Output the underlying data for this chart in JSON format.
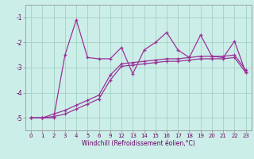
{
  "xlabel": "Windchill (Refroidissement éolien,°C)",
  "bg_color": "#cceee8",
  "line_color": "#993399",
  "grid_color": "#99ccbb",
  "ylim": [
    -5.5,
    -0.5
  ],
  "yticks": [
    -5,
    -4,
    -3,
    -2,
    -1
  ],
  "x_labels": [
    "0",
    "1",
    "2",
    "3",
    "4",
    "5",
    "6",
    "9",
    "12",
    "13",
    "14",
    "15",
    "16",
    "17",
    "18",
    "19",
    "20",
    "21",
    "22",
    "23"
  ],
  "line1_y": [
    -5.0,
    -5.0,
    -5.0,
    -2.5,
    -1.1,
    -2.6,
    -2.65,
    -2.65,
    -2.2,
    -3.25,
    -2.3,
    -2.0,
    -1.6,
    -2.3,
    -2.6,
    -1.7,
    -2.55,
    -2.6,
    -1.95,
    -3.2
  ],
  "line2_y": [
    -5.0,
    -5.0,
    -4.85,
    -4.7,
    -4.5,
    -4.3,
    -4.1,
    -3.3,
    -2.85,
    -2.8,
    -2.75,
    -2.7,
    -2.65,
    -2.65,
    -2.6,
    -2.55,
    -2.55,
    -2.55,
    -2.5,
    -3.1
  ],
  "line3_y": [
    -5.0,
    -5.0,
    -4.95,
    -4.85,
    -4.65,
    -4.45,
    -4.25,
    -3.5,
    -2.95,
    -2.9,
    -2.85,
    -2.8,
    -2.75,
    -2.75,
    -2.7,
    -2.65,
    -2.65,
    -2.65,
    -2.6,
    -3.2
  ]
}
